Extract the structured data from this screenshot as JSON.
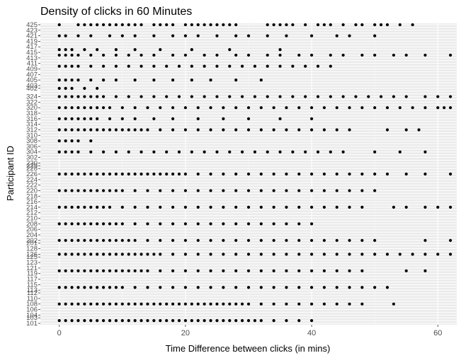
{
  "chart_data": {
    "type": "scatter",
    "title": "Density of clicks in 60 Minutes",
    "xlabel": "Time Difference between clicks (in mins)",
    "ylabel": "Participant ID",
    "xlim": [
      -3,
      63
    ],
    "xticks": [
      0,
      20,
      40,
      60
    ],
    "grid": true,
    "background": "#ebebeb",
    "point_color": "#000000",
    "participant_ids": [
      "101",
      "102",
      "103",
      "104",
      "105",
      "106",
      "107",
      "108",
      "109",
      "110",
      "111",
      "112",
      "113",
      "114",
      "115",
      "116",
      "117",
      "118",
      "119",
      "120",
      "121",
      "122",
      "123",
      "124",
      "125",
      "126",
      "127",
      "128",
      "129",
      "201",
      "202",
      "203",
      "204",
      "205",
      "206",
      "207",
      "208",
      "209",
      "210",
      "211",
      "212",
      "213",
      "214",
      "215",
      "216",
      "217",
      "218",
      "219",
      "220",
      "221",
      "222",
      "223",
      "224",
      "225",
      "226",
      "227",
      "228",
      "229",
      "230",
      "301",
      "302",
      "303",
      "304",
      "305",
      "306",
      "307",
      "308",
      "309",
      "310",
      "311",
      "312",
      "313",
      "314",
      "315",
      "316",
      "317",
      "318",
      "319",
      "320",
      "321",
      "322",
      "323",
      "324",
      "325",
      "401",
      "402",
      "403",
      "404",
      "405",
      "406",
      "407",
      "408",
      "409",
      "410",
      "411",
      "412",
      "413",
      "414",
      "415",
      "416",
      "417",
      "418",
      "419",
      "420",
      "421",
      "422",
      "423",
      "424",
      "425"
    ],
    "visible_tick_labels": [
      "101",
      "103",
      "104",
      "106",
      "108",
      "110",
      "112",
      "113",
      "115",
      "117",
      "119",
      "121",
      "123",
      "125",
      "126",
      "128",
      "201",
      "202",
      "204",
      "206",
      "208",
      "210",
      "212",
      "214",
      "216",
      "218",
      "220",
      "222",
      "224",
      "226",
      "228",
      "229",
      "230",
      "302",
      "304",
      "306",
      "308",
      "310",
      "312",
      "314",
      "316",
      "318",
      "320",
      "322",
      "324",
      "402",
      "403",
      "405",
      "407",
      "409",
      "411",
      "413",
      "415",
      "417",
      "419",
      "421",
      "423",
      "425"
    ],
    "series": [
      {
        "id": "425",
        "x": [
          0,
          3,
          4,
          5,
          6,
          7,
          8,
          9,
          10,
          11,
          12,
          13,
          15,
          16,
          17,
          18,
          20,
          21,
          22,
          23,
          24,
          25,
          26,
          27,
          28,
          33,
          34,
          35,
          36,
          37,
          39,
          41,
          42,
          43,
          45,
          47,
          48,
          50,
          51,
          52,
          54,
          56
        ]
      },
      {
        "id": "421",
        "x": [
          0,
          1,
          3,
          5,
          8,
          10,
          12,
          15,
          18,
          20,
          22,
          25,
          28,
          30,
          33,
          36,
          40,
          44,
          46,
          50
        ]
      },
      {
        "id": "416",
        "x": [
          0,
          1,
          2,
          4,
          6,
          9,
          12,
          16,
          21,
          27,
          35
        ]
      },
      {
        "id": "414",
        "x": [
          0,
          1,
          2,
          3,
          5,
          7,
          9,
          11,
          13,
          15,
          18,
          20,
          23,
          25,
          28,
          30,
          33,
          35,
          38,
          40,
          43,
          45,
          48,
          50,
          53,
          55,
          58,
          62
        ]
      },
      {
        "id": "410",
        "x": [
          0,
          1,
          2,
          3,
          5,
          7,
          9,
          11,
          13,
          15,
          17,
          19,
          21,
          23,
          25,
          27,
          29,
          31,
          33,
          35,
          37,
          39,
          41,
          43
        ]
      },
      {
        "id": "405",
        "x": [
          0,
          1,
          2,
          3,
          5,
          7,
          9,
          12,
          15,
          18,
          21,
          24,
          28,
          32
        ]
      },
      {
        "id": "402",
        "x": [
          0,
          1,
          2,
          4,
          6
        ]
      },
      {
        "id": "324",
        "x": [
          0,
          1,
          2,
          3,
          4,
          5,
          6,
          7,
          9,
          11,
          13,
          15,
          17,
          19,
          21,
          23,
          25,
          27,
          29,
          31,
          33,
          35,
          37,
          39,
          41,
          43,
          45,
          47,
          49,
          51,
          53,
          55,
          58,
          60,
          62
        ]
      },
      {
        "id": "320",
        "x": [
          0,
          1,
          2,
          3,
          4,
          5,
          6,
          7,
          8,
          10,
          12,
          14,
          16,
          18,
          20,
          22,
          24,
          26,
          28,
          30,
          32,
          34,
          36,
          38,
          40,
          42,
          44,
          46,
          48,
          50,
          52,
          54,
          56,
          58,
          60,
          61,
          62
        ]
      },
      {
        "id": "316",
        "x": [
          0,
          1,
          2,
          3,
          4,
          5,
          6,
          8,
          10,
          12,
          15,
          18,
          22,
          26,
          30,
          35,
          40
        ]
      },
      {
        "id": "312",
        "x": [
          0,
          1,
          2,
          3,
          4,
          5,
          6,
          7,
          8,
          9,
          10,
          11,
          12,
          13,
          14,
          16,
          18,
          20,
          22,
          24,
          26,
          28,
          30,
          32,
          34,
          36,
          38,
          40,
          42,
          44,
          46,
          52,
          55,
          57
        ]
      },
      {
        "id": "308",
        "x": [
          0,
          1,
          2,
          3,
          5
        ]
      },
      {
        "id": "304",
        "x": [
          0,
          1,
          2,
          3,
          5,
          7,
          9,
          11,
          13,
          15,
          17,
          19,
          21,
          23,
          25,
          27,
          29,
          31,
          33,
          35,
          37,
          39,
          41,
          43,
          45,
          50,
          54,
          58
        ]
      },
      {
        "id": "226",
        "x": [
          0,
          1,
          2,
          3,
          4,
          5,
          6,
          7,
          8,
          9,
          10,
          11,
          12,
          13,
          14,
          15,
          16,
          17,
          18,
          19,
          20,
          22,
          24,
          26,
          28,
          30,
          32,
          34,
          36,
          38,
          40,
          42,
          44,
          46,
          48,
          50,
          52,
          55,
          58,
          62
        ]
      },
      {
        "id": "220",
        "x": [
          0,
          1,
          2,
          3,
          4,
          5,
          6,
          7,
          8,
          9,
          10,
          12,
          14,
          16,
          18,
          20,
          22,
          24,
          26,
          28,
          30,
          32,
          34,
          36,
          38,
          40,
          42,
          44,
          46,
          48,
          50
        ]
      },
      {
        "id": "214",
        "x": [
          0,
          1,
          2,
          3,
          4,
          5,
          6,
          7,
          8,
          10,
          12,
          14,
          16,
          18,
          20,
          22,
          24,
          26,
          28,
          30,
          32,
          34,
          36,
          38,
          40,
          42,
          44,
          46,
          48,
          53,
          55,
          58,
          60,
          62
        ]
      },
      {
        "id": "208",
        "x": [
          0,
          1,
          2,
          3,
          4,
          5,
          6,
          7,
          8,
          9,
          10,
          12,
          14,
          16,
          18,
          20,
          22,
          24,
          26,
          28,
          30,
          32,
          34,
          36,
          38,
          40
        ]
      },
      {
        "id": "202",
        "x": [
          0,
          1,
          2,
          3,
          4,
          5,
          6,
          7,
          8,
          9,
          10,
          11,
          12,
          14,
          16,
          18,
          20,
          22,
          24,
          26,
          28,
          30,
          32,
          34,
          36,
          38,
          40,
          42,
          44,
          46,
          48,
          50,
          58,
          62
        ]
      },
      {
        "id": "126",
        "x": [
          0,
          1,
          2,
          3,
          4,
          5,
          6,
          7,
          8,
          9,
          10,
          11,
          12,
          13,
          14,
          15,
          16,
          18,
          20,
          22,
          24,
          26,
          28,
          30,
          32,
          34,
          36,
          38,
          40,
          42,
          44,
          46,
          48,
          50,
          52,
          54,
          56,
          58,
          60,
          62
        ]
      },
      {
        "id": "120",
        "x": [
          0,
          1,
          2,
          3,
          4,
          5,
          6,
          7,
          8,
          9,
          10,
          11,
          12,
          13,
          14,
          16,
          18,
          20,
          22,
          24,
          26,
          28,
          30,
          32,
          34,
          36,
          38,
          40,
          42,
          44,
          46,
          48,
          55,
          58
        ]
      },
      {
        "id": "114",
        "x": [
          0,
          1,
          2,
          3,
          4,
          5,
          6,
          7,
          8,
          9,
          10,
          12,
          14,
          16,
          18,
          20,
          22,
          24,
          26,
          28,
          30,
          32,
          34,
          36,
          38,
          40,
          42,
          44,
          46,
          48,
          50,
          52
        ]
      },
      {
        "id": "108",
        "x": [
          0,
          1,
          2,
          3,
          4,
          5,
          6,
          7,
          8,
          9,
          10,
          11,
          12,
          13,
          14,
          15,
          16,
          17,
          18,
          19,
          20,
          21,
          22,
          23,
          24,
          25,
          26,
          27,
          28,
          29,
          30,
          32,
          34,
          36,
          38,
          40,
          42,
          44,
          46,
          48,
          53
        ]
      },
      {
        "id": "102",
        "x": [
          0,
          1,
          2,
          3,
          4,
          5,
          6,
          7,
          8,
          9,
          10,
          11,
          12,
          13,
          14,
          15,
          16,
          17,
          18,
          19,
          20,
          21,
          22,
          23,
          24,
          25,
          26,
          27,
          28,
          29,
          30,
          31,
          32,
          34,
          36,
          38,
          40
        ]
      }
    ]
  }
}
